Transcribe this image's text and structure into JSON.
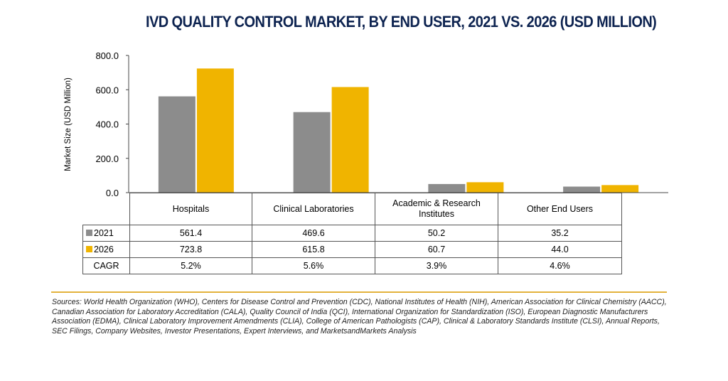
{
  "chart_data": {
    "type": "bar",
    "title": "IVD QUALITY CONTROL MARKET, BY END USER, 2021 VS. 2026 (USD MILLION)",
    "ylabel": "Market Size (USD Million)",
    "xlabel": "",
    "ylim": [
      0,
      800
    ],
    "yticks": [
      "800.0",
      "600.0",
      "400.0",
      "200.0",
      "0.0"
    ],
    "categories": [
      "Hospitals",
      "Clinical Laboratories",
      "Academic & Research Institutes",
      "Other End Users"
    ],
    "series": [
      {
        "name": "2021",
        "color": "#8c8c8c",
        "values": [
          561.4,
          469.6,
          50.2,
          35.2
        ],
        "labels": [
          "561.4",
          "469.6",
          "50.2",
          "35.2"
        ]
      },
      {
        "name": "2026",
        "color": "#f0b400",
        "values": [
          723.8,
          615.8,
          60.7,
          44.0
        ],
        "labels": [
          "723.8",
          "615.8",
          "60.7",
          "44.0"
        ]
      }
    ],
    "cagr": {
      "name": "CAGR",
      "values": [
        "5.2%",
        "5.6%",
        "3.9%",
        "4.6%"
      ]
    },
    "grid": false,
    "legend": "table-left"
  },
  "sources": "Sources: World Health Organization (WHO), Centers for Disease Control and Prevention (CDC), National Institutes of Health (NIH), American Association for Clinical Chemistry (AACC), Canadian Association for Laboratory Accreditation (CALA), Quality Council of India (QCI), International Organization for Standardization (ISO), European Diagnostic Manufacturers Association (EDMA), Clinical Laboratory Improvement Amendments (CLIA), College of American Pathologists (CAP), Clinical & Laboratory Standards Institute (CLSI), Annual Reports, SEC Filings, Company Websites, Investor Presentations, Expert Interviews, and MarketsandMarkets Analysis"
}
